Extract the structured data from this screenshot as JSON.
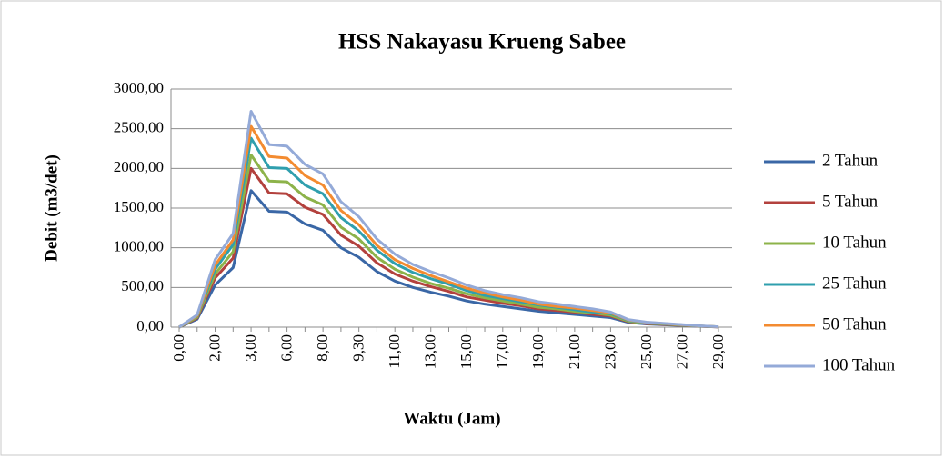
{
  "chart_data": {
    "type": "line",
    "title": "HSS Nakayasu Krueng Sabee",
    "x_label": "Waktu (Jam)",
    "y_label": "Debit (m3/det)",
    "categories": [
      "0,00",
      null,
      "2,00",
      null,
      "3,00",
      null,
      "6,00",
      null,
      "8,00",
      null,
      "9,30",
      null,
      "11,00",
      null,
      "13,00",
      null,
      "15,00",
      null,
      "17,00",
      null,
      "19,00",
      null,
      "21,00",
      null,
      "23,00",
      null,
      "25,00",
      null,
      "27,00",
      null,
      "29,00"
    ],
    "series": [
      {
        "name": "2 Tahun",
        "color": "#3a67a6",
        "values": [
          0,
          100,
          530,
          750,
          1720,
          1460,
          1450,
          1300,
          1220,
          1000,
          880,
          700,
          580,
          500,
          440,
          390,
          330,
          290,
          260,
          230,
          200,
          180,
          160,
          140,
          120,
          60,
          40,
          30,
          20,
          10,
          3
        ]
      },
      {
        "name": "5 Tahun",
        "color": "#b3413d",
        "values": [
          0,
          115,
          620,
          870,
          2000,
          1690,
          1680,
          1510,
          1420,
          1160,
          1020,
          810,
          670,
          580,
          510,
          450,
          380,
          340,
          300,
          270,
          230,
          210,
          190,
          160,
          140,
          70,
          45,
          35,
          23,
          12,
          3
        ]
      },
      {
        "name": "10 Tahun",
        "color": "#8db34a",
        "values": [
          0,
          125,
          670,
          950,
          2170,
          1840,
          1830,
          1640,
          1540,
          1260,
          1110,
          880,
          730,
          630,
          550,
          490,
          420,
          370,
          330,
          290,
          250,
          230,
          200,
          180,
          150,
          75,
          50,
          38,
          25,
          13,
          4
        ]
      },
      {
        "name": "25 Tahun",
        "color": "#2f9fae",
        "values": [
          0,
          140,
          730,
          1040,
          2380,
          2010,
          2000,
          1790,
          1680,
          1380,
          1210,
          970,
          800,
          690,
          610,
          540,
          460,
          400,
          360,
          320,
          280,
          250,
          220,
          190,
          170,
          85,
          55,
          41,
          28,
          14,
          4
        ]
      },
      {
        "name": "50 Tahun",
        "color": "#f38b30",
        "values": [
          0,
          145,
          780,
          1100,
          2530,
          2150,
          2130,
          1910,
          1790,
          1470,
          1290,
          1030,
          850,
          740,
          650,
          570,
          490,
          430,
          380,
          340,
          290,
          260,
          240,
          210,
          180,
          90,
          60,
          44,
          29,
          15,
          4
        ]
      },
      {
        "name": "100 Tahun",
        "color": "#94aad8",
        "values": [
          0,
          155,
          850,
          1180,
          2720,
          2300,
          2280,
          2050,
          1930,
          1580,
          1390,
          1110,
          920,
          790,
          700,
          620,
          530,
          460,
          410,
          370,
          320,
          290,
          260,
          230,
          190,
          95,
          63,
          47,
          31,
          16,
          5
        ]
      }
    ],
    "ylim": [
      0,
      3000
    ],
    "yticks": [
      {
        "value": 0,
        "label": "0,00"
      },
      {
        "value": 500,
        "label": "500,00"
      },
      {
        "value": 1000,
        "label": "1000,00"
      },
      {
        "value": 1500,
        "label": "1500,00"
      },
      {
        "value": 2000,
        "label": "2000,00"
      },
      {
        "value": 2500,
        "label": "2500,00"
      },
      {
        "value": 3000,
        "label": "3000,00"
      }
    ],
    "grid": true,
    "legend": "right"
  }
}
